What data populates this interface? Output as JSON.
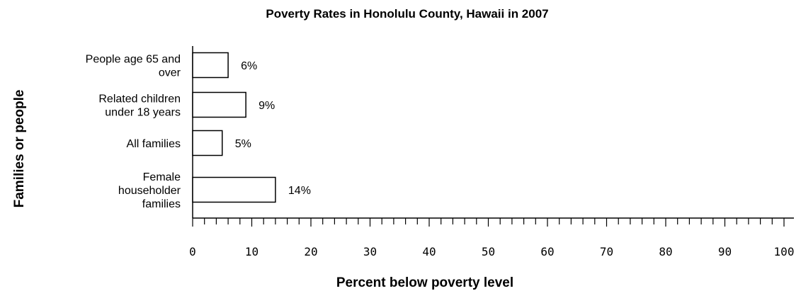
{
  "chart_data": {
    "type": "bar",
    "orientation": "horizontal",
    "title": "Poverty Rates in Honolulu County, Hawaii in 2007",
    "xlabel": "Percent below poverty level",
    "ylabel": "Families or people",
    "categories": [
      [
        "People age 65 and",
        "over"
      ],
      [
        "Related children",
        "under 18 years"
      ],
      [
        "All families"
      ],
      [
        "Female",
        "householder",
        "families"
      ]
    ],
    "values": [
      6,
      9,
      5,
      14
    ],
    "data_labels": [
      "6%",
      "9%",
      "5%",
      "14%"
    ],
    "xlim": [
      0,
      100
    ],
    "x_ticks": [
      0,
      10,
      20,
      30,
      40,
      50,
      60,
      70,
      80,
      90,
      100
    ],
    "x_tick_labels": [
      "0",
      "10",
      "20",
      "30",
      "40",
      "50",
      "60",
      "70",
      "80",
      "90",
      "100"
    ],
    "minor_tick_step": 2,
    "grid": false,
    "legend": "none",
    "bar_fill": "#ffffff",
    "bar_stroke": "#000000"
  }
}
